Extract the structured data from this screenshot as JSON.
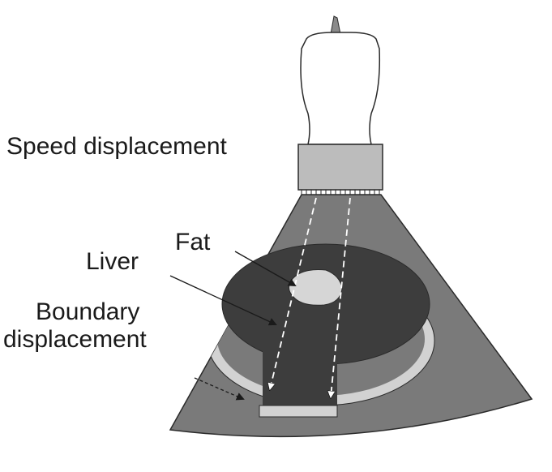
{
  "labels": {
    "speed_displacement": "Speed displacement",
    "fat": "Fat",
    "liver": "Liver",
    "boundary_line1": "Boundary",
    "boundary_line2": "displacement"
  },
  "colors": {
    "background": "#ffffff",
    "probe_body": "#ffffff",
    "probe_face": "#bcbcbc",
    "field": "#7a7a7a",
    "liver": "#3d3d3d",
    "fat": "#d6d6d6",
    "boundary_ring": "#d2d2d2",
    "outline": "#2a2a2a"
  }
}
